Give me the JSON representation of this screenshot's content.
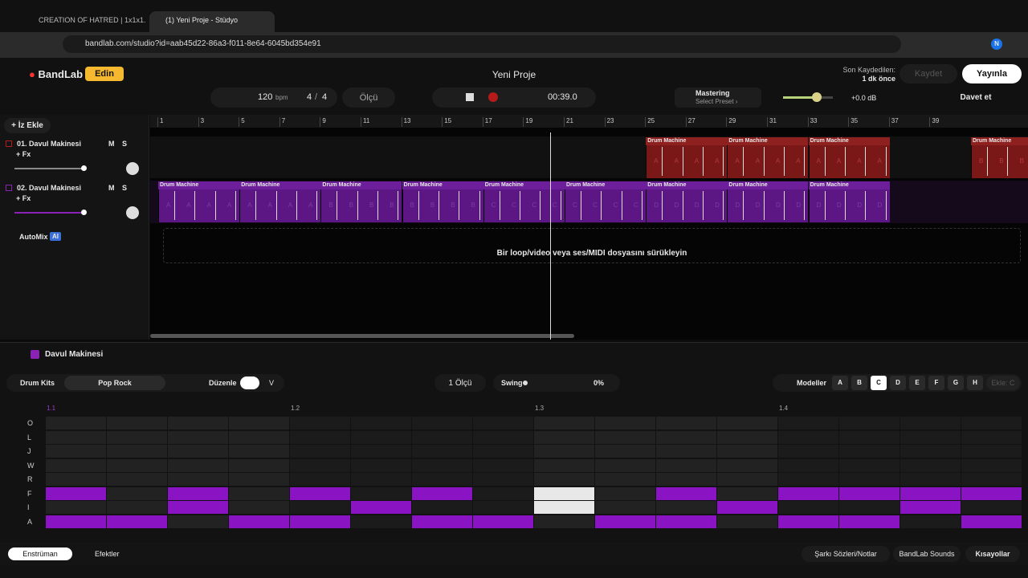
{
  "browser": {
    "tabs": [
      "CREATION OF HATRED | 1x1x1...",
      "(1) Yeni Proje - Stüdyo"
    ],
    "url": "bandlab.com/studio?id=aab45d22-86a3-f011-8e64-6045bd354e91",
    "profile": "N"
  },
  "header": {
    "logo": "BandLab",
    "edit": "Edin",
    "title": "Yeni Proje",
    "saved_label": "Son Kaydedilen:",
    "saved_time": "1 dk önce",
    "save": "Kaydet",
    "publish": "Yayınla"
  },
  "toolbar": {
    "bpm": "120",
    "bpm_unit": "bpm",
    "sig_num": "4",
    "sig_sep": "/",
    "sig_den": "4",
    "count_in": "Ölçü",
    "time": "00:39.0",
    "mastering": "Mastering",
    "preset": "Select Preset ›",
    "volume": "+0.0 dB",
    "invite": "Davet et"
  },
  "sidebar": {
    "add": "+ İz Ekle",
    "tracks": [
      {
        "number": "01.",
        "name": "Davul Makinesi",
        "fx": "+ Fx",
        "mute": "M",
        "solo": "S"
      },
      {
        "number": "02.",
        "name": "Davul Makinesi",
        "fx": "+ Fx",
        "mute": "M",
        "solo": "S"
      }
    ],
    "automix": "AutoMix",
    "ai": "AI"
  },
  "timeline": {
    "ruler": [
      1,
      3,
      5,
      7,
      9,
      11,
      13,
      15,
      17,
      19,
      21,
      23,
      25,
      27,
      29,
      31,
      33,
      35,
      37,
      39
    ],
    "playhead_bar": 20.3,
    "region_label": "Drum Machine",
    "tracks": [
      {
        "regions": [
          {
            "start_bar": 25,
            "pattern": "A"
          },
          {
            "start_bar": 29,
            "pattern": "A"
          },
          {
            "start_bar": 33,
            "pattern": "A"
          },
          {
            "start_bar": 41,
            "pattern": "B"
          }
        ]
      },
      {
        "regions": [
          {
            "start_bar": 1,
            "pattern": "A"
          },
          {
            "start_bar": 5,
            "pattern": "A"
          },
          {
            "start_bar": 9,
            "pattern": "B"
          },
          {
            "start_bar": 13,
            "pattern": "B"
          },
          {
            "start_bar": 17,
            "pattern": "C"
          },
          {
            "start_bar": 21,
            "pattern": "C"
          },
          {
            "start_bar": 25,
            "pattern": "D"
          },
          {
            "start_bar": 29,
            "pattern": "D"
          },
          {
            "start_bar": 33,
            "pattern": "D"
          }
        ]
      }
    ],
    "drop_hint": "Bir loop/video veya ses/MIDI dosyasını sürükleyin"
  },
  "drum_editor": {
    "title": "Davul Makinesi",
    "kits": "Drum Kits",
    "kit": "Pop Rock",
    "edit": "Düzenle",
    "edit_mode": "V",
    "length": "1 Ölçü",
    "swing": "Swing",
    "swing_value": "0%",
    "patterns_label": "Modeller",
    "patterns": [
      "A",
      "B",
      "C",
      "D",
      "E",
      "F",
      "G",
      "H"
    ],
    "active_pattern": "C",
    "add": "Ekle: C",
    "beats": [
      "1.1",
      "1.2",
      "1.3",
      "1.4"
    ],
    "current_step": 8,
    "rows": [
      {
        "label": "O",
        "steps": [
          0,
          0,
          0,
          0,
          0,
          0,
          0,
          0,
          0,
          0,
          0,
          0,
          0,
          0,
          0,
          0
        ]
      },
      {
        "label": "L",
        "steps": [
          0,
          0,
          0,
          0,
          0,
          0,
          0,
          0,
          0,
          0,
          0,
          0,
          0,
          0,
          0,
          0
        ]
      },
      {
        "label": "J",
        "steps": [
          0,
          0,
          0,
          0,
          0,
          0,
          0,
          0,
          0,
          0,
          0,
          0,
          0,
          0,
          0,
          0
        ]
      },
      {
        "label": "W",
        "steps": [
          0,
          0,
          0,
          0,
          0,
          0,
          0,
          0,
          0,
          0,
          0,
          0,
          0,
          0,
          0,
          0
        ]
      },
      {
        "label": "R",
        "steps": [
          0,
          0,
          0,
          0,
          0,
          0,
          0,
          0,
          0,
          0,
          0,
          0,
          0,
          0,
          0,
          0
        ]
      },
      {
        "label": "F",
        "steps": [
          1,
          0,
          1,
          0,
          1,
          0,
          1,
          0,
          1,
          0,
          1,
          0,
          1,
          1,
          1,
          1
        ]
      },
      {
        "label": "I",
        "steps": [
          0,
          0,
          1,
          0,
          0,
          1,
          0,
          0,
          1,
          0,
          0,
          1,
          0,
          0,
          1,
          0
        ]
      },
      {
        "label": "A",
        "steps": [
          1,
          1,
          0,
          1,
          1,
          0,
          1,
          1,
          0,
          1,
          1,
          0,
          1,
          1,
          0,
          1
        ]
      }
    ]
  },
  "footer": {
    "instrument": "Enstrüman",
    "effects": "Efektler",
    "lyrics": "Şarkı Sözleri/Notlar",
    "sounds": "BandLab Sounds",
    "shortcuts": "Kısayollar"
  }
}
